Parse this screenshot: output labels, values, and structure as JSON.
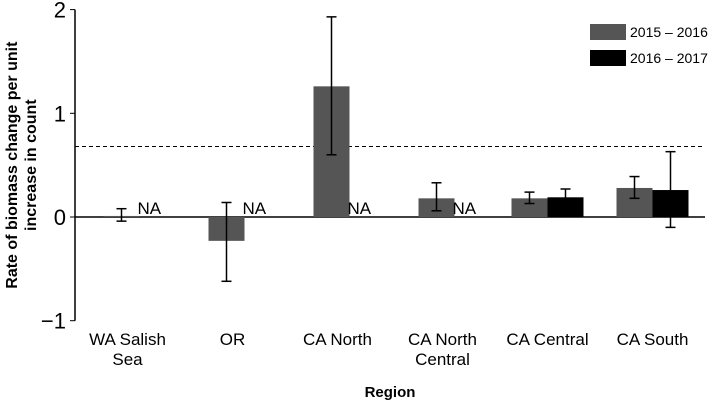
{
  "chart_data": {
    "type": "bar",
    "title": "",
    "xlabel": "Region",
    "ylabel": [
      "Rate of biomass  change per unit",
      "increase in count"
    ],
    "ylim": [
      -1,
      2
    ],
    "yticks": [
      "-1",
      "0",
      "1",
      "2"
    ],
    "categories": [
      [
        "WA Salish",
        "Sea"
      ],
      [
        "OR"
      ],
      [
        "CA North"
      ],
      [
        "CA North",
        "Central"
      ],
      [
        "CA Central"
      ],
      [
        "CA South"
      ]
    ],
    "reference_line": 0.68,
    "na_label": "NA",
    "legend_position": "top-right",
    "series": [
      {
        "name": "2015 – 2016",
        "color": "#555555",
        "values": [
          0.01,
          -0.23,
          1.26,
          0.18,
          0.18,
          0.28
        ],
        "err_low": [
          -0.04,
          -0.62,
          0.6,
          0.06,
          0.13,
          0.18
        ],
        "err_high": [
          0.08,
          0.14,
          1.93,
          0.33,
          0.24,
          0.39
        ]
      },
      {
        "name": "2016 – 2017",
        "color": "#000000",
        "values": [
          null,
          null,
          null,
          null,
          0.19,
          0.26
        ],
        "err_low": [
          null,
          null,
          null,
          null,
          0.11,
          -0.1
        ],
        "err_high": [
          null,
          null,
          null,
          null,
          0.27,
          0.63
        ]
      }
    ]
  }
}
